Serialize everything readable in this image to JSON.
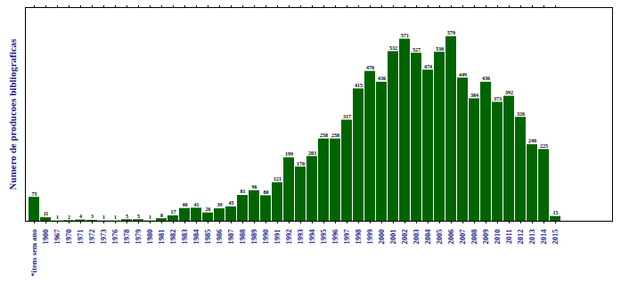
{
  "chart_data": {
    "type": "bar",
    "y_label": "Numero de producoes bibliograficas",
    "categories": [
      "*itens sem ano",
      "1900",
      "1967",
      "1970",
      "1971",
      "1972",
      "1973",
      "1976",
      "1978",
      "1979",
      "1980",
      "1981",
      "1982",
      "1983",
      "1984",
      "1985",
      "1986",
      "1987",
      "1988",
      "1989",
      "1990",
      "1991",
      "1992",
      "1993",
      "1994",
      "1995",
      "1996",
      "1997",
      "1998",
      "1999",
      "2000",
      "2001",
      "2002",
      "2003",
      "2004",
      "2005",
      "2006",
      "2007",
      "2008",
      "2009",
      "2010",
      "2011",
      "2012",
      "2013",
      "2014",
      "2015"
    ],
    "values": [
      75,
      11,
      1,
      2,
      4,
      3,
      1,
      1,
      5,
      5,
      1,
      8,
      17,
      40,
      41,
      26,
      39,
      45,
      81,
      96,
      80,
      121,
      199,
      170,
      203,
      258,
      258,
      317,
      415,
      470,
      436,
      532,
      571,
      527,
      474,
      530,
      579,
      449,
      384,
      436,
      373,
      392,
      326,
      240,
      225,
      15
    ],
    "color": "#006400",
    "ylim": [
      0,
      670
    ],
    "data_labels": true,
    "tick_labels": "x",
    "grid": false
  }
}
